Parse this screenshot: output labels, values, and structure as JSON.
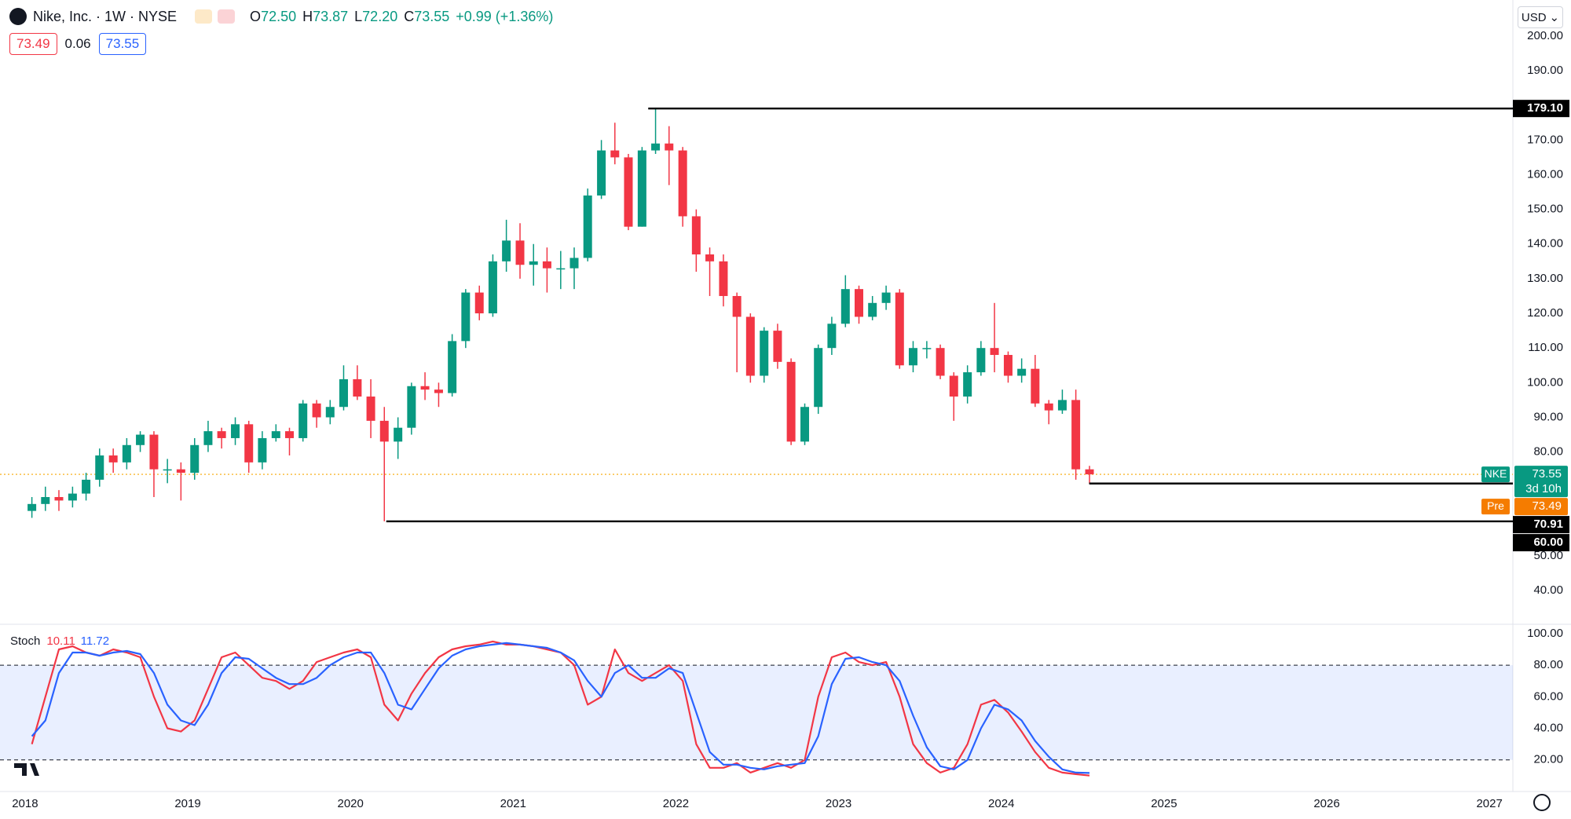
{
  "header": {
    "symbol": "Nike, Inc. · 1W · NYSE",
    "ohlc": [
      {
        "label": "O",
        "value": "72.50"
      },
      {
        "label": "H",
        "value": "73.87"
      },
      {
        "label": "L",
        "value": "72.20"
      },
      {
        "label": "C",
        "value": "73.55"
      }
    ],
    "change": "+0.99 (+1.36%)",
    "boxes": [
      {
        "text": "73.49",
        "color": "#f23645"
      },
      {
        "text": "0.06",
        "color": null
      },
      {
        "text": "73.55",
        "color": "#2962ff"
      }
    ],
    "currency": "USD"
  },
  "chart_data": [
    {
      "type": "candlestick",
      "up_color": "#089981",
      "down_color": "#f23645",
      "x": [
        2018.042,
        2018.125,
        2018.208,
        2018.292,
        2018.375,
        2018.458,
        2018.542,
        2018.625,
        2018.708,
        2018.792,
        2018.875,
        2018.958,
        2019.042,
        2019.125,
        2019.208,
        2019.292,
        2019.375,
        2019.458,
        2019.542,
        2019.625,
        2019.708,
        2019.792,
        2019.875,
        2019.958,
        2020.042,
        2020.125,
        2020.208,
        2020.292,
        2020.375,
        2020.458,
        2020.542,
        2020.625,
        2020.708,
        2020.792,
        2020.875,
        2020.958,
        2021.042,
        2021.125,
        2021.208,
        2021.292,
        2021.375,
        2021.458,
        2021.542,
        2021.625,
        2021.708,
        2021.792,
        2021.875,
        2021.958,
        2022.042,
        2022.125,
        2022.208,
        2022.292,
        2022.375,
        2022.458,
        2022.542,
        2022.625,
        2022.708,
        2022.792,
        2022.875,
        2022.958,
        2023.042,
        2023.125,
        2023.208,
        2023.292,
        2023.375,
        2023.458,
        2023.542,
        2023.625,
        2023.708,
        2023.792,
        2023.875,
        2023.958,
        2024.042,
        2024.125,
        2024.208,
        2024.292,
        2024.375,
        2024.458,
        2024.542
      ],
      "open": [
        63,
        65,
        67,
        66,
        68,
        72,
        79,
        77,
        82,
        85,
        75,
        75,
        74,
        82,
        86,
        84,
        88,
        77,
        84,
        86,
        84,
        94,
        90,
        93,
        101,
        96,
        89,
        83,
        87,
        99,
        98,
        97,
        112,
        126,
        120,
        135,
        141,
        134,
        135,
        133,
        133,
        136,
        154,
        167,
        165,
        145,
        167,
        169,
        167,
        148,
        137,
        135,
        125,
        119,
        102,
        115,
        106,
        83,
        93,
        110,
        117,
        127,
        119,
        123,
        126,
        105,
        110,
        110,
        102,
        96,
        103,
        110,
        108,
        102,
        104,
        94,
        92,
        95,
        75
      ],
      "high": [
        67,
        70,
        69,
        70,
        74,
        81,
        81,
        84,
        86,
        86,
        78,
        77,
        84,
        89,
        87,
        90,
        89,
        86,
        88,
        87,
        95,
        95,
        95,
        105,
        105,
        101,
        93,
        90,
        100,
        103,
        100,
        114,
        127,
        128,
        137,
        147,
        146,
        140,
        139,
        138,
        139,
        156,
        170,
        175,
        166,
        168,
        179.1,
        174,
        168,
        150,
        139,
        137,
        126,
        120,
        116,
        117,
        107,
        94,
        111,
        119,
        131,
        128,
        125,
        128,
        127,
        112,
        112,
        111,
        103,
        105,
        112,
        123,
        109,
        107,
        108,
        95,
        98,
        98,
        76
      ],
      "low": [
        61,
        63,
        63,
        64,
        66,
        70,
        74,
        75,
        80,
        67,
        71,
        66,
        72,
        80,
        81,
        82,
        74,
        75,
        83,
        79,
        83,
        87,
        88,
        92,
        95,
        84,
        60,
        78,
        85,
        95,
        93,
        96,
        110,
        118,
        119,
        132,
        130,
        128,
        126,
        127,
        127,
        135,
        153,
        163,
        144,
        145,
        166,
        157,
        145,
        132,
        125,
        122,
        103,
        100,
        100,
        104,
        82,
        82,
        91,
        108,
        116,
        117,
        118,
        121,
        104,
        103,
        107,
        101,
        89,
        94,
        102,
        103,
        100,
        100,
        93,
        88,
        91,
        72,
        70.91
      ],
      "close": [
        65,
        67,
        66,
        68,
        72,
        79,
        77,
        82,
        85,
        75,
        75,
        74,
        82,
        86,
        84,
        88,
        77,
        84,
        86,
        84,
        94,
        90,
        93,
        101,
        96,
        89,
        83,
        87,
        99,
        98,
        97,
        112,
        126,
        120,
        135,
        141,
        134,
        135,
        133,
        133,
        136,
        154,
        167,
        165,
        145,
        167,
        169,
        167,
        148,
        137,
        135,
        125,
        119,
        102,
        115,
        106,
        83,
        93,
        110,
        117,
        127,
        119,
        123,
        126,
        105,
        110,
        110,
        102,
        96,
        103,
        110,
        108,
        102,
        104,
        94,
        92,
        95,
        75,
        73.55
      ],
      "xlim": [
        2017.846,
        2027.144
      ],
      "xticks": [
        2018,
        2019,
        2020,
        2021,
        2022,
        2023,
        2024,
        2025,
        2026,
        2027
      ],
      "ylim": [
        30.3,
        210.4
      ],
      "yticks": [
        {
          "value": 200,
          "label": "200.00"
        },
        {
          "value": 190,
          "label": "190.00"
        },
        {
          "value": 170,
          "label": "170.00"
        },
        {
          "value": 160,
          "label": "160.00"
        },
        {
          "value": 150,
          "label": "150.00"
        },
        {
          "value": 140,
          "label": "140.00"
        },
        {
          "value": 130,
          "label": "130.00"
        },
        {
          "value": 120,
          "label": "120.00"
        },
        {
          "value": 110,
          "label": "110.00"
        },
        {
          "value": 100,
          "label": "100.00"
        },
        {
          "value": 90,
          "label": "90.00"
        },
        {
          "value": 80,
          "label": "80.00"
        },
        {
          "value": 50,
          "label": "50.00"
        },
        {
          "value": 40,
          "label": "40.00"
        }
      ],
      "grid": false,
      "hlines": [
        {
          "value": 179.1,
          "label": "179.10",
          "start": 2021.83
        },
        {
          "value": 70.91,
          "label": "70.91",
          "start": 2024.54
        },
        {
          "value": 60,
          "label": "60.00",
          "start": 2020.22
        }
      ],
      "price_tags": [
        {
          "name": "NKE",
          "value": 73.55,
          "value_label": "73.55",
          "note": "3d 10h",
          "color": "#089981",
          "line_color": "#f7a600"
        },
        {
          "name": "Pre",
          "value": 73.49,
          "value_label": "73.49",
          "color": "#f57c00"
        }
      ]
    },
    {
      "type": "line",
      "title": "Stoch",
      "x": [
        2018.042,
        2018.125,
        2018.208,
        2018.292,
        2018.375,
        2018.458,
        2018.542,
        2018.625,
        2018.708,
        2018.792,
        2018.875,
        2018.958,
        2019.042,
        2019.125,
        2019.208,
        2019.292,
        2019.375,
        2019.458,
        2019.542,
        2019.625,
        2019.708,
        2019.792,
        2019.875,
        2019.958,
        2020.042,
        2020.125,
        2020.208,
        2020.292,
        2020.375,
        2020.458,
        2020.542,
        2020.625,
        2020.708,
        2020.792,
        2020.875,
        2020.958,
        2021.042,
        2021.125,
        2021.208,
        2021.292,
        2021.375,
        2021.458,
        2021.542,
        2021.625,
        2021.708,
        2021.792,
        2021.875,
        2021.958,
        2022.042,
        2022.125,
        2022.208,
        2022.292,
        2022.375,
        2022.458,
        2022.542,
        2022.625,
        2022.708,
        2022.792,
        2022.875,
        2022.958,
        2023.042,
        2023.125,
        2023.208,
        2023.292,
        2023.375,
        2023.458,
        2023.542,
        2023.625,
        2023.708,
        2023.792,
        2023.875,
        2023.958,
        2024.042,
        2024.125,
        2024.208,
        2024.292,
        2024.375,
        2024.458,
        2024.542
      ],
      "series": [
        {
          "color": "#f23645",
          "values": [
            30,
            60,
            90,
            92,
            88,
            86,
            90,
            88,
            85,
            60,
            40,
            38,
            45,
            65,
            85,
            88,
            80,
            72,
            70,
            65,
            70,
            82,
            85,
            88,
            90,
            85,
            55,
            45,
            62,
            75,
            85,
            90,
            92,
            93,
            95,
            93,
            93,
            92,
            90,
            88,
            80,
            55,
            60,
            90,
            75,
            70,
            75,
            80,
            70,
            30,
            15,
            15,
            18,
            12,
            15,
            18,
            15,
            20,
            60,
            85,
            88,
            82,
            80,
            82,
            60,
            30,
            18,
            12,
            15,
            30,
            55,
            58,
            50,
            38,
            25,
            15,
            12,
            11,
            10.11
          ]
        },
        {
          "color": "#2962ff",
          "values": [
            35,
            45,
            75,
            88,
            88,
            86,
            88,
            89,
            87,
            75,
            55,
            45,
            42,
            55,
            75,
            85,
            84,
            78,
            72,
            68,
            68,
            72,
            80,
            85,
            88,
            88,
            75,
            55,
            52,
            65,
            78,
            86,
            90,
            92,
            93,
            94,
            93,
            92,
            91,
            88,
            83,
            70,
            60,
            75,
            80,
            72,
            72,
            78,
            75,
            50,
            25,
            17,
            17,
            15,
            14,
            16,
            17,
            18,
            35,
            68,
            84,
            85,
            82,
            80,
            70,
            48,
            28,
            16,
            14,
            20,
            40,
            55,
            52,
            45,
            32,
            22,
            14,
            12,
            11.72
          ]
        }
      ],
      "xlim": [
        2017.846,
        2027.144
      ],
      "ylim": [
        0,
        105.4
      ],
      "yticks": [
        {
          "value": 100,
          "label": "100.00"
        },
        {
          "value": 80,
          "label": "80.00"
        },
        {
          "value": 60,
          "label": "60.00"
        },
        {
          "value": 40,
          "label": "40.00"
        },
        {
          "value": 20,
          "label": "20.00"
        }
      ],
      "band": [
        20,
        80
      ],
      "band_color": "rgba(41,98,255,0.10)"
    }
  ]
}
